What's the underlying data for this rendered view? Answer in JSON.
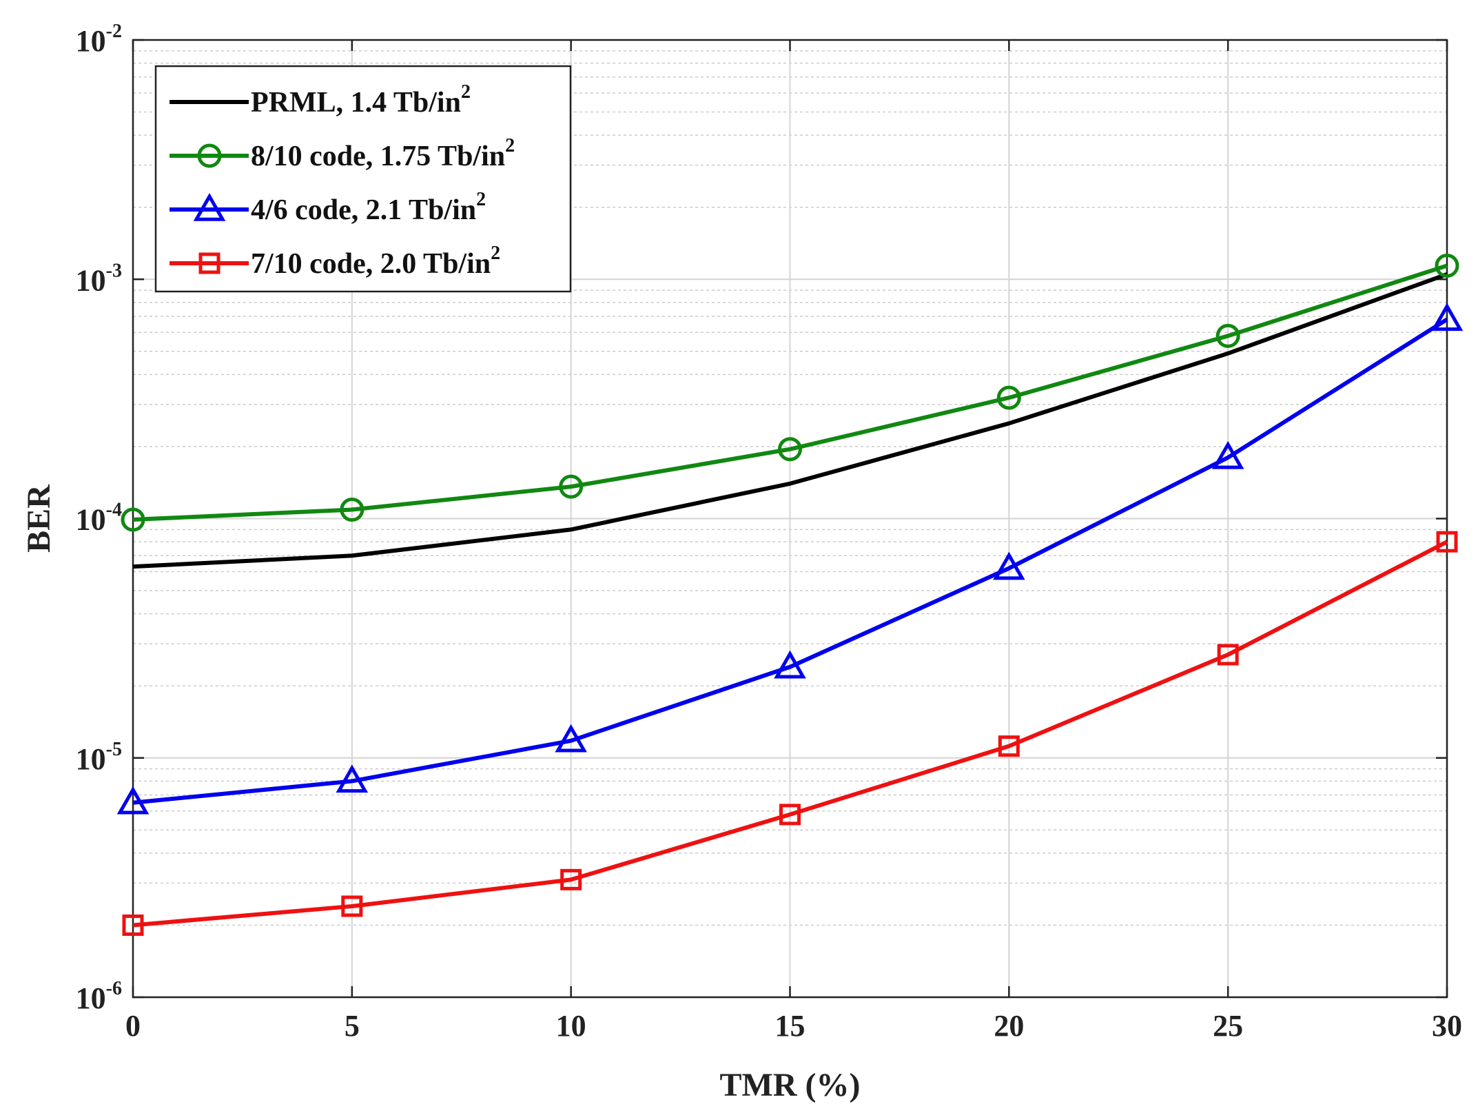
{
  "chart_data": {
    "type": "line",
    "xlabel": "TMR (%)",
    "ylabel": "BER",
    "yscale": "log",
    "xlim": [
      0,
      30
    ],
    "ylim": [
      1e-06,
      0.01
    ],
    "grid": true,
    "legend_position": "top-left",
    "x": [
      0,
      5,
      10,
      15,
      20,
      25,
      30
    ],
    "x_tick_labels": [
      "0",
      "5",
      "10",
      "15",
      "20",
      "25",
      "30"
    ],
    "y_ticks": [
      {
        "value": 1e-06,
        "base": "10",
        "exp": "-6"
      },
      {
        "value": 1e-05,
        "base": "10",
        "exp": "-5"
      },
      {
        "value": 0.0001,
        "base": "10",
        "exp": "-4"
      },
      {
        "value": 0.001,
        "base": "10",
        "exp": "-3"
      },
      {
        "value": 0.01,
        "base": "10",
        "exp": "-2"
      }
    ],
    "series": [
      {
        "name": "PRML, 1.4 Tb/in",
        "sup": "2",
        "color": "#000000",
        "marker": "none",
        "values": [
          6.3e-05,
          7e-05,
          9e-05,
          0.00014,
          0.00025,
          0.00049,
          0.00105
        ]
      },
      {
        "name": "8/10 code, 1.75 Tb/in",
        "sup": "2",
        "color": "#118811",
        "marker": "circle",
        "values": [
          9.9e-05,
          0.000109,
          0.000136,
          0.000195,
          0.00032,
          0.00058,
          0.00114
        ]
      },
      {
        "name": "4/6 code, 2.1 Tb/in",
        "sup": "2",
        "color": "#0000ee",
        "marker": "triangle",
        "values": [
          6.5e-06,
          8e-06,
          1.18e-05,
          2.4e-05,
          6.2e-05,
          0.00018,
          0.00068
        ]
      },
      {
        "name": "7/10 code, 2.0 Tb/in",
        "sup": "2",
        "color": "#ee1111",
        "marker": "square",
        "values": [
          2e-06,
          2.4e-06,
          3.1e-06,
          5.8e-06,
          1.12e-05,
          2.7e-05,
          8e-05
        ]
      }
    ]
  }
}
